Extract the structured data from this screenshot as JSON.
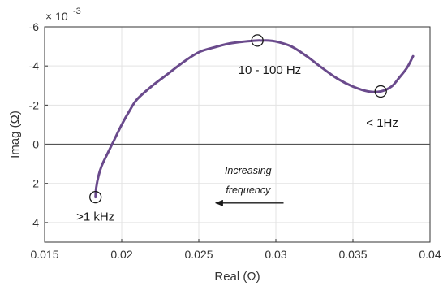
{
  "chart_data": {
    "type": "line",
    "xlabel": "Real (Ω)",
    "ylabel": "Imag (Ω)",
    "y_multiplier": "× 10",
    "y_exponent": "-3",
    "xlim": [
      0.015,
      0.04
    ],
    "ylim": [
      5,
      -6
    ],
    "y_axis_reversed": true,
    "grid": true,
    "xticks": [
      0.015,
      0.02,
      0.025,
      0.03,
      0.035,
      0.04
    ],
    "xtick_labels": [
      "0.015",
      "0.02",
      "0.025",
      "0.03",
      "0.035",
      "0.04"
    ],
    "yticks": [
      -6,
      -4,
      -2,
      0,
      2,
      4
    ],
    "ytick_labels": [
      "-6",
      "-4",
      "-2",
      "0",
      "2",
      "4"
    ],
    "series_color": "#6a4a8c",
    "zero_line_color": "#555555",
    "series": [
      {
        "x": [
          0.0183,
          0.01835,
          0.0185,
          0.0187,
          0.019,
          0.0195,
          0.02,
          0.0205,
          0.021,
          0.022,
          0.023,
          0.024,
          0.025,
          0.026,
          0.027,
          0.028,
          0.0288,
          0.029,
          0.0295,
          0.03,
          0.031,
          0.032,
          0.033,
          0.034,
          0.035,
          0.036,
          0.0368,
          0.0375,
          0.038,
          0.0385,
          0.0389
        ],
        "y": [
          2.7,
          2.2,
          1.6,
          1.1,
          0.6,
          -0.2,
          -1.0,
          -1.7,
          -2.3,
          -3.0,
          -3.6,
          -4.2,
          -4.7,
          -4.95,
          -5.15,
          -5.25,
          -5.3,
          -5.3,
          -5.3,
          -5.25,
          -5.0,
          -4.5,
          -3.9,
          -3.35,
          -2.95,
          -2.7,
          -2.7,
          -2.95,
          -3.4,
          -3.9,
          -4.5
        ]
      }
    ],
    "markers": [
      {
        "x": 0.0183,
        "y": 2.7
      },
      {
        "x": 0.0288,
        "y": -5.3
      },
      {
        "x": 0.0368,
        "y": -2.7
      }
    ],
    "annotations": [
      {
        "text": ">1 kHz",
        "x": 0.0183,
        "y": 3.7
      },
      {
        "text": "10 - 100 Hz",
        "x": 0.0296,
        "y": -3.8
      },
      {
        "text": "< 1Hz",
        "x": 0.0369,
        "y": -1.1
      },
      {
        "text": "Increasing",
        "x": 0.0282,
        "y": 1.3
      },
      {
        "text": "frequency",
        "x": 0.0282,
        "y": 2.3
      }
    ],
    "arrow": {
      "from": [
        0.0305,
        3.0
      ],
      "to": [
        0.0261,
        3.0
      ],
      "direction": "left"
    }
  }
}
